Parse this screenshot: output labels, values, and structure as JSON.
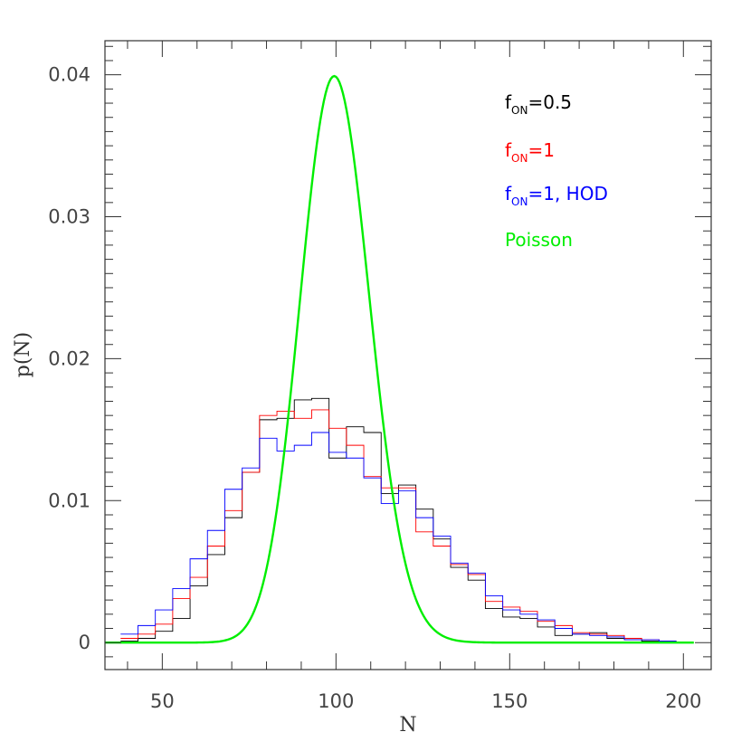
{
  "chart_data": {
    "type": "line",
    "xlabel": "N",
    "ylabel": "p(N)",
    "xlim": [
      33.5,
      208
    ],
    "ylim": [
      -0.0019,
      0.0424
    ],
    "x_ticks": [
      50,
      100,
      150,
      200
    ],
    "x_tick_labels": [
      "50",
      "100",
      "150",
      "200"
    ],
    "y_ticks": [
      0,
      0.01,
      0.02,
      0.03,
      0.04
    ],
    "y_tick_labels": [
      "0",
      "0.01",
      "0.02",
      "0.03",
      "0.04"
    ],
    "grid": false,
    "legend_position": "top-right",
    "legend": [
      {
        "base": "f",
        "sub": "ON",
        "rest": "=0.5",
        "color": "#000000"
      },
      {
        "base": "f",
        "sub": "ON",
        "rest": "=1",
        "color": "#ff0000"
      },
      {
        "base": "f",
        "sub": "ON",
        "rest": "=1, HOD",
        "color": "#0000ff"
      },
      {
        "base": "",
        "sub": "",
        "rest": "Poisson",
        "color": "#00ee00"
      }
    ],
    "bin_width": 5,
    "bin_edges_start": 38,
    "series": [
      {
        "name": "fON=0.5",
        "kind": "step",
        "color": "#000000",
        "values": [
          0.0001,
          0.0003,
          0.0008,
          0.0017,
          0.004,
          0.0062,
          0.0088,
          0.012,
          0.0157,
          0.0158,
          0.0171,
          0.0172,
          0.013,
          0.0152,
          0.0148,
          0.0105,
          0.0111,
          0.0094,
          0.0073,
          0.0053,
          0.0044,
          0.0024,
          0.0018,
          0.0017,
          0.0011,
          0.0005,
          0.0006,
          0.0007,
          0.0003,
          0.0002,
          0.0001,
          0.0001
        ]
      },
      {
        "name": "fON=1",
        "kind": "step",
        "color": "#ff0000",
        "values": [
          0.0003,
          0.0006,
          0.0013,
          0.0031,
          0.0046,
          0.0068,
          0.0093,
          0.012,
          0.016,
          0.0163,
          0.0158,
          0.0164,
          0.0151,
          0.0139,
          0.0117,
          0.0109,
          0.0109,
          0.0078,
          0.0068,
          0.0055,
          0.0048,
          0.0029,
          0.0025,
          0.0022,
          0.0015,
          0.0012,
          0.0007,
          0.0006,
          0.0005,
          0.0003,
          0.0002,
          0.0001
        ]
      },
      {
        "name": "fON=1, HOD",
        "kind": "step",
        "color": "#0000ff",
        "values": [
          0.0006,
          0.0012,
          0.0023,
          0.0038,
          0.0059,
          0.0079,
          0.0108,
          0.0123,
          0.0144,
          0.0135,
          0.0139,
          0.0148,
          0.0134,
          0.013,
          0.0116,
          0.0098,
          0.0107,
          0.0088,
          0.0075,
          0.0056,
          0.0049,
          0.0033,
          0.0023,
          0.002,
          0.0016,
          0.001,
          0.0006,
          0.0005,
          0.0004,
          0.0002,
          0.0002,
          0.0001
        ]
      },
      {
        "name": "Poisson",
        "kind": "poisson",
        "color": "#00ee00",
        "mean": 100,
        "x_range": [
          33.5,
          203
        ]
      }
    ]
  }
}
